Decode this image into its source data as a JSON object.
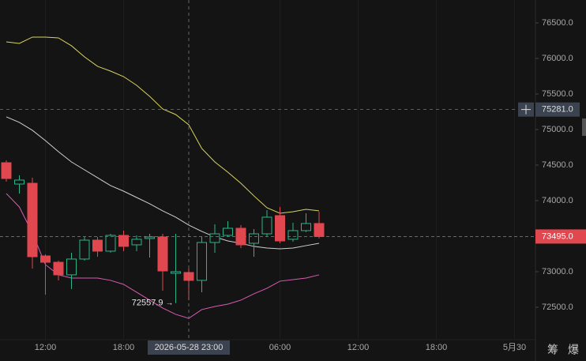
{
  "chart_data": {
    "type": "candlestick",
    "categories": [
      null,
      null,
      null,
      "12:00",
      null,
      null,
      null,
      null,
      null,
      "18:00",
      null,
      null,
      null,
      null,
      null,
      null,
      null,
      null,
      null,
      null,
      null,
      "06:00",
      null,
      null,
      null,
      null,
      null,
      "12:00",
      null,
      null,
      null,
      null,
      null,
      "18:00",
      null,
      null,
      null,
      null,
      null,
      "5月30",
      null
    ],
    "open": [
      74533,
      74233,
      74244,
      73222,
      73133,
      72956,
      73178,
      73444,
      73289,
      73511,
      73378,
      73467,
      73489,
      72978,
      72989,
      72878,
      73411,
      73511,
      73611,
      73400,
      73533,
      73789,
      73456,
      73578,
      73678,
      null,
      null,
      null,
      null,
      null,
      null,
      null,
      null,
      null,
      null,
      null,
      null,
      null,
      null,
      null,
      null
    ],
    "high": [
      74567,
      74356,
      74322,
      73244,
      73156,
      73267,
      73489,
      73489,
      73533,
      73578,
      73511,
      73533,
      73533,
      73533,
      73044,
      73489,
      73667,
      73711,
      73656,
      73600,
      73867,
      73911,
      73689,
      73822,
      73844,
      null,
      null,
      null,
      null,
      null,
      null,
      null,
      null,
      null,
      null,
      null,
      null,
      null,
      null,
      null,
      null
    ],
    "low": [
      74267,
      74100,
      73044,
      72678,
      72878,
      72756,
      73156,
      73211,
      73267,
      73289,
      73289,
      73200,
      72733,
      72557.9,
      72600,
      72711,
      73267,
      73489,
      73333,
      73211,
      73489,
      73400,
      73422,
      73556,
      73467,
      null,
      null,
      null,
      null,
      null,
      null,
      null,
      null,
      null,
      null,
      null,
      null,
      null,
      null,
      null,
      null
    ],
    "close": [
      74311,
      74289,
      73211,
      73133,
      72956,
      73178,
      73444,
      73289,
      73511,
      73356,
      73456,
      73489,
      73011,
      73000,
      72878,
      73411,
      73533,
      73611,
      73378,
      73533,
      73767,
      73433,
      73578,
      73678,
      73495,
      null,
      null,
      null,
      null,
      null,
      null,
      null,
      null,
      null,
      null,
      null,
      null,
      null,
      null,
      null,
      null
    ],
    "up_color": "#2bb58a",
    "down_color": "#e0474f",
    "series": [
      {
        "color": "#d9d35c",
        "values": [
          76233,
          76211,
          76300,
          76300,
          76289,
          76178,
          76022,
          75889,
          75822,
          75744,
          75622,
          75467,
          75289,
          75211,
          75067,
          74733,
          74544,
          74400,
          74244,
          74067,
          73900,
          73822,
          73844,
          73878,
          73856,
          null,
          null,
          null,
          null,
          null,
          null,
          null,
          null,
          null,
          null,
          null,
          null,
          null,
          null,
          null,
          null
        ]
      },
      {
        "color": "#cfcfcf",
        "values": [
          75178,
          75100,
          74989,
          74844,
          74689,
          74544,
          74433,
          74322,
          74211,
          74133,
          74044,
          73956,
          73856,
          73767,
          73656,
          73567,
          73489,
          73433,
          73400,
          73356,
          73333,
          73322,
          73333,
          73367,
          73400,
          null,
          null,
          null,
          null,
          null,
          null,
          null,
          null,
          null,
          null,
          null,
          null,
          null,
          null,
          null,
          null
        ]
      },
      {
        "color": "#d85cb2",
        "values": [
          74100,
          73911,
          73544,
          73100,
          72956,
          72911,
          72911,
          72911,
          72878,
          72822,
          72711,
          72600,
          72489,
          72400,
          72344,
          72467,
          72511,
          72544,
          72600,
          72689,
          72767,
          72867,
          72889,
          72911,
          72956,
          null,
          null,
          null,
          null,
          null,
          null,
          null,
          null,
          null,
          null,
          null,
          null,
          null,
          null,
          null,
          null
        ]
      }
    ],
    "ylim": [
      72044,
      76822
    ],
    "yticks": [
      {
        "value": 72500,
        "label": "72500.0"
      },
      {
        "value": 73000,
        "label": "73000.0"
      },
      {
        "value": 73500,
        "label": "73500.0"
      },
      {
        "value": 74000,
        "label": "74000.0"
      },
      {
        "value": 74500,
        "label": "74500.0"
      },
      {
        "value": 75000,
        "label": "75000.0"
      },
      {
        "value": 75500,
        "label": "75500.0"
      },
      {
        "value": 76000,
        "label": "76000.0"
      },
      {
        "value": 76500,
        "label": "76500.0"
      }
    ],
    "low_annotation": 72557.9,
    "last_price": {
      "value": 73495,
      "label": "73495.0"
    },
    "crosshair": {
      "x_label": "2026-05-28 23:00",
      "y_value": 75281,
      "y_label": "75281.0"
    },
    "toolbar": [
      "筹",
      "爆"
    ]
  }
}
